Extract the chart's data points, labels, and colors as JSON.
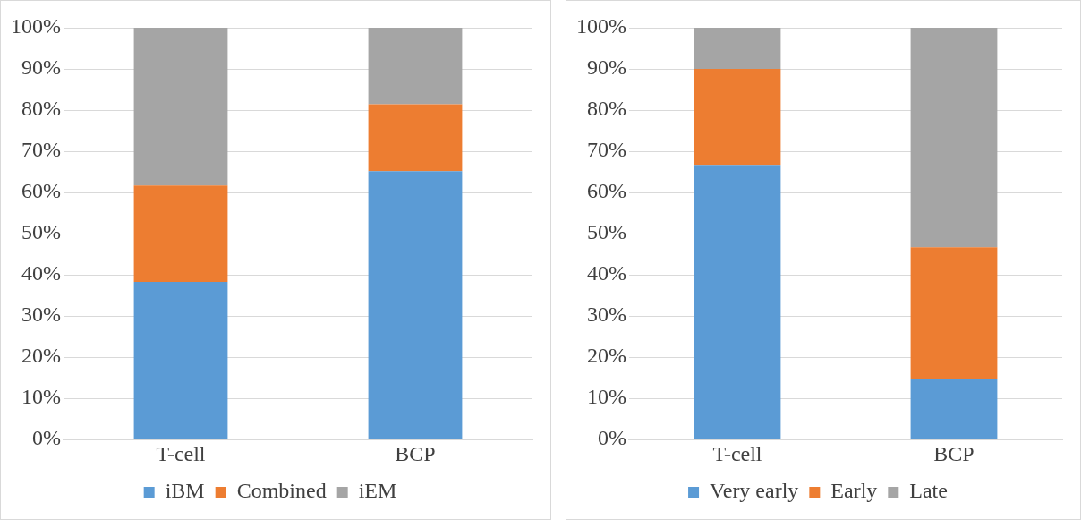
{
  "chart_data": [
    {
      "type": "bar",
      "stacked": true,
      "categories": [
        "T-cell",
        "BCP"
      ],
      "series": [
        {
          "name": "iBM",
          "color": "#5b9bd5",
          "values": [
            38.3,
            65.2
          ]
        },
        {
          "name": "Combined",
          "color": "#ed7d31",
          "values": [
            23.4,
            16.2
          ]
        },
        {
          "name": "iEM",
          "color": "#a5a5a5",
          "values": [
            38.3,
            18.6
          ]
        }
      ],
      "ylim": [
        0,
        100
      ],
      "yticks": [
        {
          "value": 0,
          "label": "0%"
        },
        {
          "value": 10,
          "label": "10%"
        },
        {
          "value": 20,
          "label": "20%"
        },
        {
          "value": 30,
          "label": "30%"
        },
        {
          "value": 40,
          "label": "40%"
        },
        {
          "value": 50,
          "label": "50%"
        },
        {
          "value": 60,
          "label": "60%"
        },
        {
          "value": 70,
          "label": "70%"
        },
        {
          "value": 80,
          "label": "80%"
        },
        {
          "value": 90,
          "label": "90%"
        },
        {
          "value": 100,
          "label": "100%"
        }
      ],
      "grid": "y",
      "legend": "bottom"
    },
    {
      "type": "bar",
      "stacked": true,
      "categories": [
        "T-cell",
        "BCP"
      ],
      "series": [
        {
          "name": "Very early",
          "color": "#5b9bd5",
          "values": [
            66.7,
            14.8
          ]
        },
        {
          "name": "Early",
          "color": "#ed7d31",
          "values": [
            23.3,
            31.9
          ]
        },
        {
          "name": "Late",
          "color": "#a5a5a5",
          "values": [
            10,
            53.3
          ]
        }
      ],
      "ylim": [
        0,
        100
      ],
      "yticks": [
        {
          "value": 0,
          "label": "0%"
        },
        {
          "value": 10,
          "label": "10%"
        },
        {
          "value": 20,
          "label": "20%"
        },
        {
          "value": 30,
          "label": "30%"
        },
        {
          "value": 40,
          "label": "40%"
        },
        {
          "value": 50,
          "label": "50%"
        },
        {
          "value": 60,
          "label": "60%"
        },
        {
          "value": 70,
          "label": "70%"
        },
        {
          "value": 80,
          "label": "80%"
        },
        {
          "value": 90,
          "label": "90%"
        },
        {
          "value": 100,
          "label": "100%"
        }
      ],
      "grid": "y",
      "legend": "bottom"
    }
  ]
}
